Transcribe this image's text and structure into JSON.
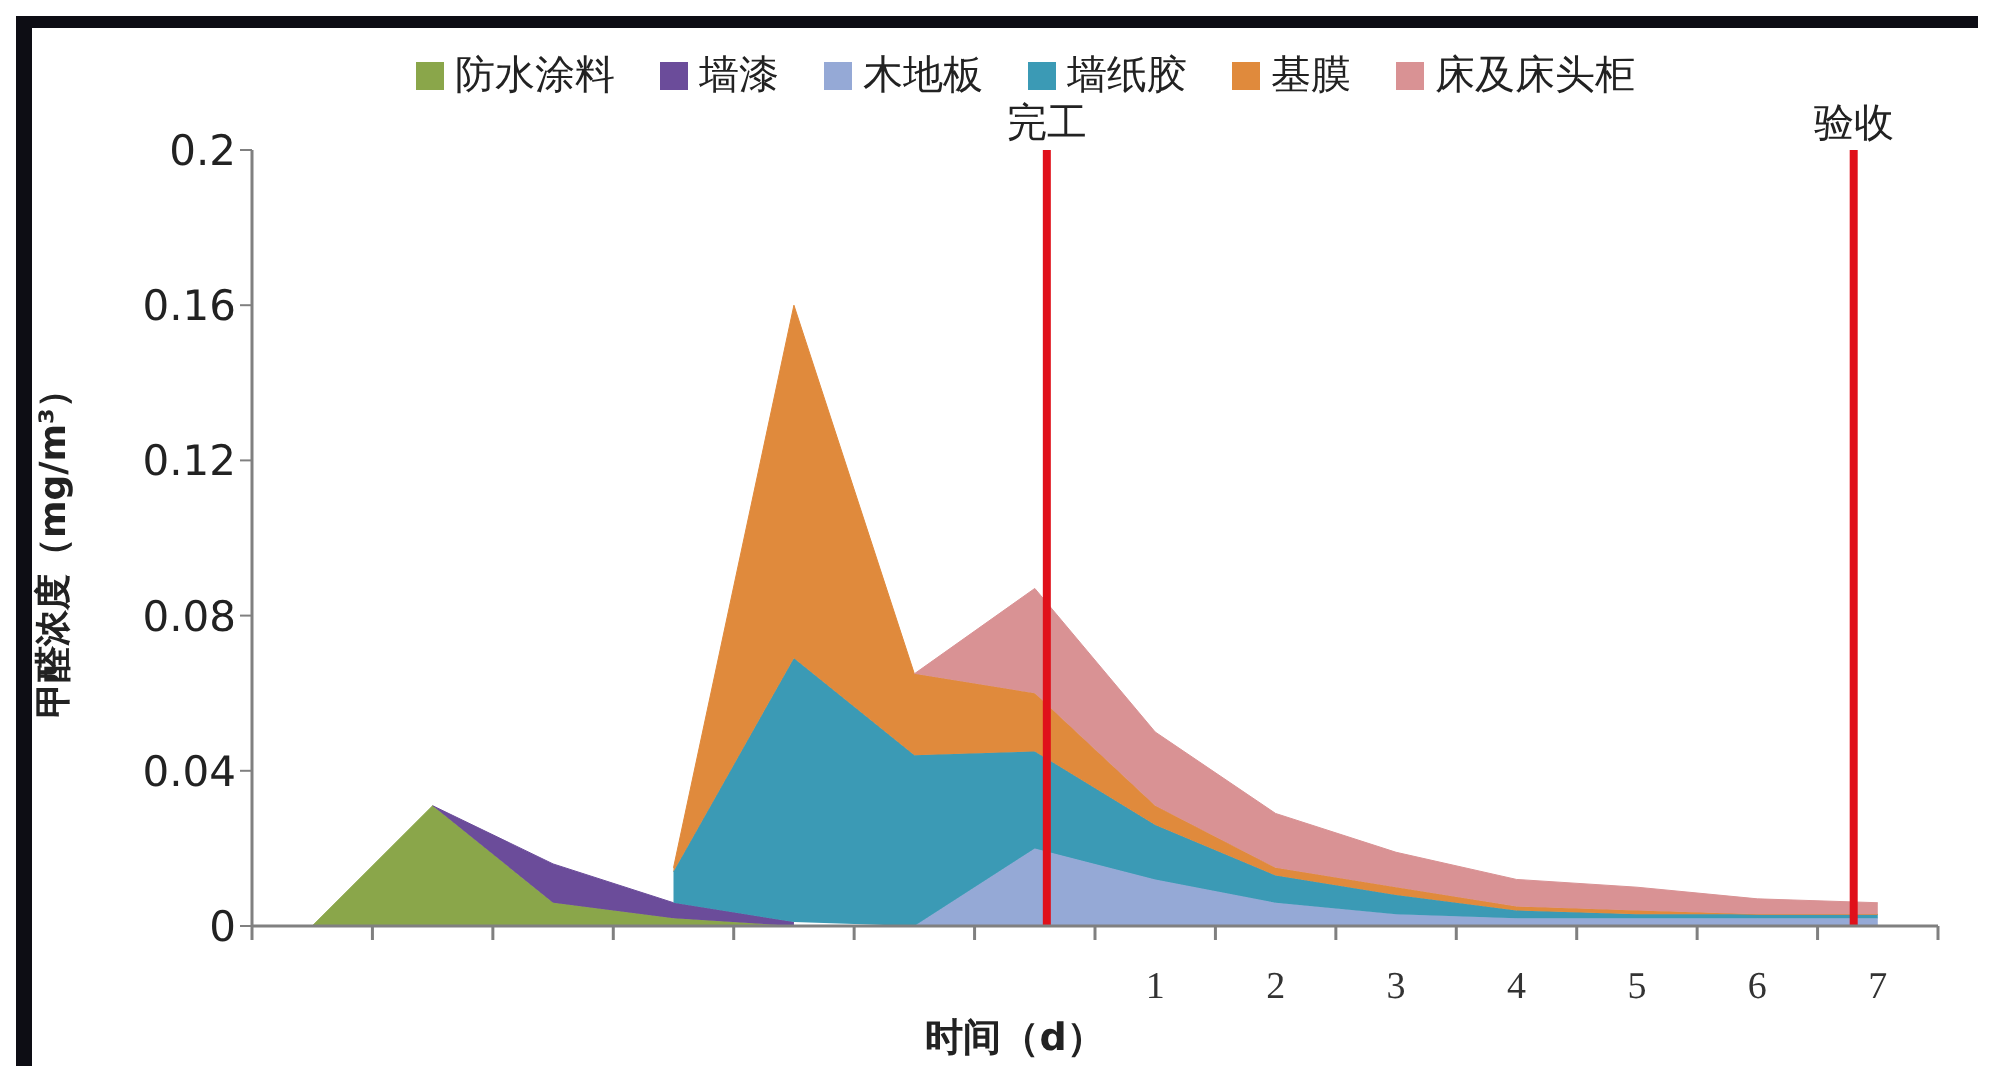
{
  "chart_data": {
    "type": "area",
    "stacked": true,
    "xlabel": "时间（d）",
    "ylabel": "甲醛浓度（mg/m³）",
    "x": [
      -6,
      -5,
      -4,
      -3,
      -2,
      -1,
      0,
      1,
      2,
      3,
      4,
      5,
      6,
      7
    ],
    "xlim": [
      -6.5,
      7.5
    ],
    "xticks": [
      {
        "value": -6.5,
        "label": null
      },
      {
        "value": -5.5,
        "label": null
      },
      {
        "value": -4.5,
        "label": null
      },
      {
        "value": -3.5,
        "label": null
      },
      {
        "value": -2.5,
        "label": null
      },
      {
        "value": -1.5,
        "label": null
      },
      {
        "value": -0.5,
        "label": null
      },
      {
        "value": 0.5,
        "label": null
      },
      {
        "value": 1.5,
        "label": null
      },
      {
        "value": 2.5,
        "label": null
      },
      {
        "value": 3.5,
        "label": null
      },
      {
        "value": 4.5,
        "label": null
      },
      {
        "value": 5.5,
        "label": null
      },
      {
        "value": 6.5,
        "label": null
      },
      {
        "value": 7.5,
        "label": null
      },
      1,
      2,
      3,
      4,
      5,
      6,
      7
    ],
    "ylim": [
      0,
      0.2
    ],
    "yticks": [
      0,
      0.04,
      0.08,
      0.12,
      0.16,
      0.2
    ],
    "legend": "top",
    "grid": false,
    "series": [
      {
        "name": "防水涂料",
        "color": "#8aa64a",
        "values": [
          0,
          0.031,
          0.006,
          0.002,
          0,
          null,
          null,
          null,
          null,
          null,
          null,
          null,
          null,
          null
        ]
      },
      {
        "name": "墙漆",
        "color": "#6b4c9a",
        "values": [
          null,
          0,
          0.01,
          0.004,
          0.001,
          null,
          null,
          null,
          null,
          null,
          null,
          null,
          null,
          null
        ]
      },
      {
        "name": "木地板",
        "color": "#95a9d6",
        "values": [
          null,
          null,
          null,
          null,
          null,
          0,
          0.02,
          0.012,
          0.006,
          0.003,
          0.002,
          0.002,
          0.002,
          0.002
        ]
      },
      {
        "name": "墙纸胶",
        "color": "#3b9ab5",
        "values": [
          null,
          null,
          null,
          0.008,
          0.068,
          0.044,
          0.025,
          0.014,
          0.007,
          0.005,
          0.002,
          0.001,
          0.001,
          0.001
        ]
      },
      {
        "name": "基膜",
        "color": "#e08a3c",
        "values": [
          null,
          null,
          null,
          0.001,
          0.091,
          0.021,
          0.015,
          0.005,
          0.002,
          0.002,
          0.001,
          0.001,
          0,
          0
        ]
      },
      {
        "name": "床及床头柜",
        "color": "#d99294",
        "values": [
          null,
          null,
          null,
          null,
          null,
          0,
          0.027,
          0.019,
          0.014,
          0.009,
          0.007,
          0.006,
          0.004,
          0.003
        ]
      }
    ],
    "ref_lines": [
      {
        "axis": "x",
        "value": 0.1,
        "label": "完工",
        "color": "#e0101a"
      },
      {
        "axis": "x",
        "value": 6.8,
        "label": "验收",
        "color": "#e0101a"
      }
    ]
  }
}
